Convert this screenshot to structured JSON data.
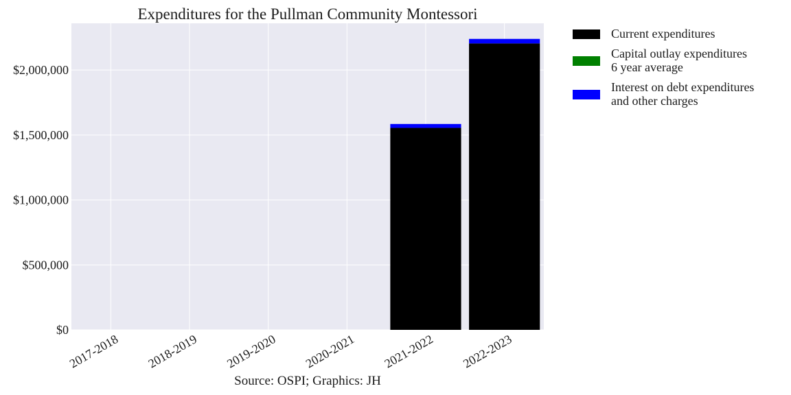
{
  "chart_data": {
    "type": "bar",
    "stacked": true,
    "title": "Expenditures for the Pullman Community Montessori",
    "xlabel": "",
    "ylabel": "",
    "categories": [
      "2017-2018",
      "2018-2019",
      "2019-2020",
      "2020-2021",
      "2021-2022",
      "2022-2023"
    ],
    "series": [
      {
        "name": "Current expenditures",
        "color": "#000000",
        "values": [
          0,
          0,
          0,
          0,
          1555000,
          2205000
        ]
      },
      {
        "name": "Capital outlay expenditures\n6 year average",
        "color": "#008000",
        "values": [
          0,
          0,
          0,
          0,
          0,
          0
        ]
      },
      {
        "name": "Interest on debt expenditures\nand other charges",
        "color": "#0000ff",
        "values": [
          0,
          0,
          0,
          0,
          30000,
          35000
        ]
      }
    ],
    "ylim": [
      0,
      2360000
    ],
    "yticks": [
      0,
      500000,
      1000000,
      1500000,
      2000000
    ],
    "ytick_labels": [
      "$0",
      "$500,000",
      "$1,000,000",
      "$1,500,000",
      "$2,000,000"
    ],
    "grid": true,
    "legend_position": "outside-right-top",
    "background_color": "#e9e9f2",
    "source": "Source: OSPI; Graphics: JH"
  }
}
